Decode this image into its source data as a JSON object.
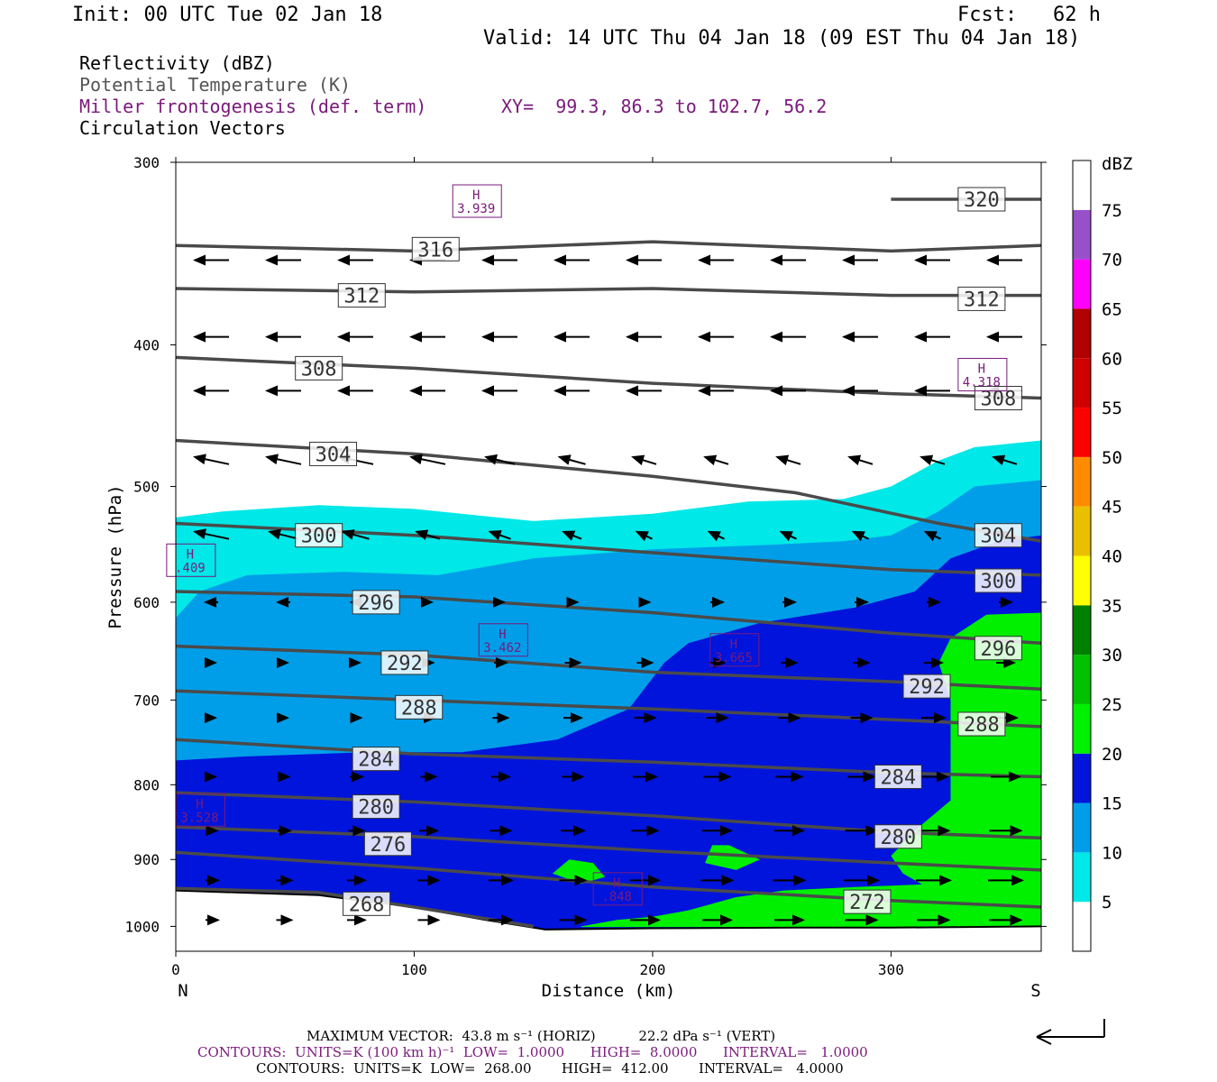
{
  "header": {
    "init": "Init: 00 UTC Tue 02 Jan 18",
    "fcst": "Fcst:   62 h",
    "valid": "Valid: 14 UTC Thu 04 Jan 18 (09 EST Thu 04 Jan 18)"
  },
  "legend": {
    "line1": "Reflectivity (dBZ)",
    "line2": "Potential Temperature (K)",
    "line3": "Miller frontogenesis (def. term)",
    "xy": "XY=  99.3, 86.3 to 102.7, 56.2",
    "line4": "Circulation Vectors"
  },
  "colors": {
    "theta": "#4a4a4a",
    "fronto": "#7a1a7a",
    "vector": "#000000",
    "ground": "#ffffff"
  },
  "chart_data": {
    "type": "heatmap",
    "title": "",
    "xlabel": "Distance (km)",
    "ylabel": "Pressure (hPa)",
    "xlim": [
      0,
      363
    ],
    "ylim": [
      1040,
      300
    ],
    "y_scale": "log",
    "x_ticks": [
      0,
      100,
      200,
      300
    ],
    "y_ticks": [
      300,
      400,
      500,
      600,
      700,
      800,
      900,
      1000
    ],
    "x_end_labels": {
      "left": "N",
      "right": "S"
    },
    "colorbar": {
      "label": "dBZ",
      "levels": [
        5,
        10,
        15,
        20,
        25,
        30,
        35,
        40,
        45,
        50,
        55,
        60,
        65,
        70,
        75
      ],
      "colors": [
        "#ffffff",
        "#00e8e8",
        "#009ee8",
        "#0014dc",
        "#00f000",
        "#00c000",
        "#008000",
        "#ffff00",
        "#e8c000",
        "#ff8c00",
        "#ff0000",
        "#d00000",
        "#b00000",
        "#ff00ff",
        "#9850c8",
        "#ffffff"
      ]
    },
    "reflectivity_regions": [
      {
        "dbz": 5,
        "points": [
          [
            0,
            525
          ],
          [
            20,
            520
          ],
          [
            60,
            515
          ],
          [
            100,
            518
          ],
          [
            150,
            528
          ],
          [
            200,
            522
          ],
          [
            240,
            512
          ],
          [
            280,
            510
          ],
          [
            300,
            500
          ],
          [
            320,
            480
          ],
          [
            335,
            470
          ],
          [
            363,
            465
          ],
          [
            363,
            1040
          ],
          [
            0,
            1040
          ]
        ]
      },
      {
        "dbz": 10,
        "points": [
          [
            0,
            615
          ],
          [
            10,
            590
          ],
          [
            30,
            575
          ],
          [
            70,
            572
          ],
          [
            110,
            575
          ],
          [
            150,
            560
          ],
          [
            200,
            552
          ],
          [
            250,
            548
          ],
          [
            280,
            545
          ],
          [
            300,
            540
          ],
          [
            320,
            520
          ],
          [
            335,
            500
          ],
          [
            363,
            495
          ],
          [
            363,
            1040
          ],
          [
            0,
            1040
          ]
        ]
      },
      {
        "dbz": 15,
        "points": [
          [
            0,
            770
          ],
          [
            30,
            765
          ],
          [
            80,
            760
          ],
          [
            120,
            760
          ],
          [
            160,
            745
          ],
          [
            190,
            710
          ],
          [
            205,
            660
          ],
          [
            215,
            640
          ],
          [
            245,
            620
          ],
          [
            285,
            605
          ],
          [
            310,
            590
          ],
          [
            325,
            560
          ],
          [
            345,
            545
          ],
          [
            363,
            540
          ],
          [
            363,
            1040
          ],
          [
            0,
            1040
          ]
        ]
      },
      {
        "dbz": 20,
        "points": [
          [
            320,
            660
          ],
          [
            325,
            635
          ],
          [
            340,
            612
          ],
          [
            363,
            610
          ],
          [
            363,
            1000
          ],
          [
            340,
            990
          ],
          [
            320,
            950
          ],
          [
            305,
            920
          ],
          [
            300,
            895
          ],
          [
            310,
            860
          ],
          [
            325,
            820
          ],
          [
            325,
            700
          ]
        ]
      },
      {
        "dbz": 20,
        "points": [
          [
            170,
            1000
          ],
          [
            185,
            990
          ],
          [
            200,
            985
          ],
          [
            215,
            975
          ],
          [
            235,
            955
          ],
          [
            255,
            945
          ],
          [
            285,
            940
          ],
          [
            320,
            935
          ],
          [
            363,
            930
          ],
          [
            363,
            1001
          ],
          [
            170,
            1001
          ]
        ]
      },
      {
        "dbz": 20,
        "points": [
          [
            158,
            920
          ],
          [
            165,
            900
          ],
          [
            175,
            905
          ],
          [
            180,
            925
          ],
          [
            170,
            935
          ]
        ]
      },
      {
        "dbz": 20,
        "points": [
          [
            222,
            905
          ],
          [
            225,
            880
          ],
          [
            232,
            880
          ],
          [
            245,
            900
          ],
          [
            235,
            915
          ]
        ]
      }
    ],
    "theta_contours": [
      {
        "label": "316",
        "points": [
          [
            0,
            342
          ],
          [
            100,
            345
          ],
          [
            200,
            340
          ],
          [
            300,
            345
          ],
          [
            363,
            342
          ]
        ],
        "label_at": [
          109,
          344
        ]
      },
      {
        "label": "320",
        "points": [
          [
            300,
            318
          ],
          [
            363,
            318
          ]
        ],
        "label_at": [
          338,
          318
        ]
      },
      {
        "label": "312",
        "points": [
          [
            0,
            366
          ],
          [
            100,
            368
          ],
          [
            200,
            366
          ],
          [
            300,
            370
          ],
          [
            363,
            370
          ]
        ],
        "label_at": [
          78,
          370
        ]
      },
      {
        "label": "312b",
        "text": "312",
        "points": [],
        "label_at": [
          338,
          372
        ]
      },
      {
        "label": "308",
        "points": [
          [
            0,
            408
          ],
          [
            100,
            415
          ],
          [
            200,
            425
          ],
          [
            300,
            432
          ],
          [
            363,
            435
          ]
        ],
        "label_at": [
          60,
          415
        ]
      },
      {
        "label": "308b",
        "text": "308",
        "points": [],
        "label_at": [
          345,
          435
        ]
      },
      {
        "label": "304",
        "points": [
          [
            0,
            465
          ],
          [
            100,
            475
          ],
          [
            200,
            492
          ],
          [
            260,
            505
          ],
          [
            320,
            530
          ],
          [
            363,
            545
          ]
        ],
        "label_at": [
          66,
          475
        ]
      },
      {
        "label": "304b",
        "text": "304",
        "points": [],
        "label_at": [
          345,
          540
        ]
      },
      {
        "label": "300",
        "points": [
          [
            0,
            530
          ],
          [
            100,
            540
          ],
          [
            200,
            555
          ],
          [
            300,
            570
          ],
          [
            363,
            575
          ]
        ],
        "label_at": [
          60,
          540
        ]
      },
      {
        "label": "300b",
        "text": "300",
        "points": [],
        "label_at": [
          345,
          580
        ]
      },
      {
        "label": "296",
        "points": [
          [
            0,
            590
          ],
          [
            100,
            595
          ],
          [
            200,
            610
          ],
          [
            300,
            630
          ],
          [
            363,
            640
          ]
        ],
        "label_at": [
          84,
          600
        ]
      },
      {
        "label": "296b",
        "text": "296",
        "points": [],
        "label_at": [
          345,
          645
        ]
      },
      {
        "label": "292",
        "points": [
          [
            0,
            643
          ],
          [
            100,
            652
          ],
          [
            200,
            670
          ],
          [
            300,
            680
          ],
          [
            363,
            688
          ]
        ],
        "label_at": [
          96,
          660
        ]
      },
      {
        "label": "292b",
        "text": "292",
        "points": [],
        "label_at": [
          315,
          685
        ]
      },
      {
        "label": "288",
        "points": [
          [
            0,
            690
          ],
          [
            100,
            700
          ],
          [
            200,
            710
          ],
          [
            300,
            722
          ],
          [
            363,
            730
          ]
        ],
        "label_at": [
          102,
          708
        ]
      },
      {
        "label": "288b",
        "text": "288",
        "points": [],
        "label_at": [
          338,
          727
        ]
      },
      {
        "label": "284",
        "points": [
          [
            0,
            745
          ],
          [
            100,
            762
          ],
          [
            200,
            772
          ],
          [
            300,
            785
          ],
          [
            363,
            790
          ]
        ],
        "label_at": [
          84,
          768
        ]
      },
      {
        "label": "284b",
        "text": "284",
        "points": [],
        "label_at": [
          303,
          790
        ]
      },
      {
        "label": "280",
        "points": [
          [
            0,
            810
          ],
          [
            100,
            822
          ],
          [
            200,
            840
          ],
          [
            300,
            862
          ],
          [
            363,
            870
          ]
        ],
        "label_at": [
          84,
          828
        ]
      },
      {
        "label": "280b",
        "text": "280",
        "points": [],
        "label_at": [
          303,
          868
        ]
      },
      {
        "label": "276",
        "points": [
          [
            0,
            855
          ],
          [
            100,
            868
          ],
          [
            200,
            888
          ],
          [
            300,
            905
          ],
          [
            363,
            915
          ]
        ],
        "label_at": [
          89,
          878
        ]
      },
      {
        "label": "272",
        "points": [
          [
            0,
            890
          ],
          [
            100,
            912
          ],
          [
            200,
            940
          ],
          [
            300,
            960
          ],
          [
            363,
            970
          ]
        ],
        "label_at": [
          290,
          962
        ]
      },
      {
        "label": "268",
        "points": [
          [
            0,
            942
          ],
          [
            60,
            948
          ],
          [
            100,
            970
          ],
          [
            150,
            1000
          ]
        ],
        "label_at": [
          80,
          965
        ]
      }
    ],
    "fronto_maxima": [
      {
        "label": "H",
        "value": "3.939",
        "at": [
          126,
          318
        ]
      },
      {
        "label": "H",
        "value": "4.318",
        "at": [
          338,
          418
        ]
      },
      {
        "label": "H",
        "value": ".409",
        "at": [
          6,
          560
        ]
      },
      {
        "label": "H",
        "value": "3.462",
        "at": [
          137,
          635
        ]
      },
      {
        "label": "H",
        "value": "3.665",
        "at": [
          234,
          645
        ]
      },
      {
        "label": "H",
        "value": "3.528",
        "at": [
          10,
          830
        ]
      },
      {
        "label": "H",
        "value": ".848",
        "at": [
          185,
          940
        ]
      }
    ],
    "vectors": {
      "rows_p": [
        350,
        395,
        430,
        480,
        540,
        600,
        660,
        720,
        790,
        860,
        930,
        990
      ],
      "rows_dir": [
        [
          -1,
          -1,
          -1,
          -1,
          -1,
          -1,
          -1,
          -1,
          -1,
          -1,
          -1,
          -1
        ],
        [
          -1,
          -1,
          -1,
          -1,
          -1,
          -1,
          -1,
          -1,
          -1,
          -1,
          -1,
          -1
        ],
        [
          -1,
          -1,
          -1,
          -1,
          -1,
          -1,
          -1,
          -1,
          -1,
          -1,
          -1,
          -1
        ],
        [
          -1,
          -1,
          -1,
          -1,
          -0.8,
          -0.7,
          -0.6,
          -0.6,
          -0.6,
          -0.6,
          -0.6,
          -0.6
        ],
        [
          -1,
          -0.8,
          -0.7,
          -0.6,
          -0.5,
          -0.4,
          -0.3,
          -0.3,
          -0.3,
          -0.3,
          -0.3,
          -0.3
        ],
        [
          -0.2,
          -0.2,
          -0.1,
          0,
          0,
          0.1,
          0.1,
          0.2,
          0.2,
          0.2,
          0.2,
          0.2
        ],
        [
          0,
          0,
          0,
          0.1,
          0.2,
          0.3,
          0.3,
          0.3,
          0.3,
          0.3,
          0.4,
          0.4
        ],
        [
          0,
          0,
          0.1,
          0.2,
          0.3,
          0.4,
          0.5,
          0.5,
          0.5,
          0.5,
          0.6,
          0.6
        ],
        [
          0,
          0.1,
          0.2,
          0.3,
          0.4,
          0.5,
          0.6,
          0.7,
          0.7,
          0.7,
          0.8,
          0.8
        ],
        [
          0.1,
          0.2,
          0.3,
          0.4,
          0.5,
          0.6,
          0.7,
          0.8,
          0.8,
          0.9,
          0.9,
          0.9
        ],
        [
          0.2,
          0.3,
          0.4,
          0.5,
          0.6,
          0.7,
          0.8,
          0.9,
          0.9,
          1,
          1,
          1
        ],
        [
          0.2,
          0.3,
          0.4,
          0.5,
          0.6,
          0.7,
          0.8,
          0.8,
          0.8,
          0.9,
          0.9,
          0.9
        ]
      ]
    },
    "terrain": [
      [
        0,
        945
      ],
      [
        60,
        952
      ],
      [
        100,
        970
      ],
      [
        130,
        990
      ],
      [
        155,
        1005
      ],
      [
        200,
        1003
      ],
      [
        260,
        1002
      ],
      [
        300,
        1002
      ],
      [
        363,
        1000
      ]
    ]
  },
  "footer": {
    "line1": "MAXIMUM VECTOR:  43.8 m s⁻¹ (HORIZ)          22.2 dPa s⁻¹ (VERT)",
    "line2": "CONTOURS:  UNITS=K (100 km h)⁻¹  LOW=  1.0000      HIGH=  8.0000      INTERVAL=   1.0000",
    "line3": "CONTOURS:  UNITS=K  LOW=  268.00       HIGH=  412.00       INTERVAL=   4.0000"
  }
}
